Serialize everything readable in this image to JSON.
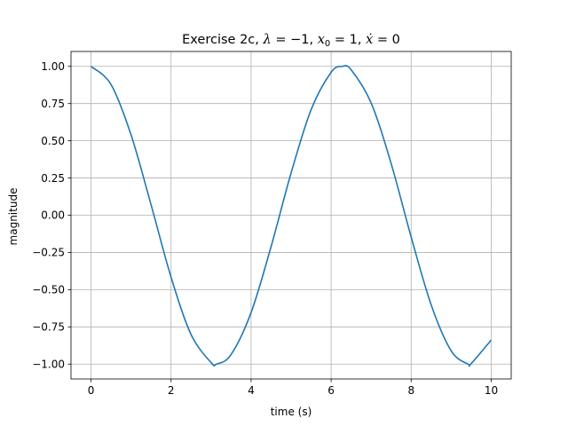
{
  "chart_data": {
    "type": "line",
    "title": "Exercise 2c, λ = −1, x₀ = 1, ẋ = 0",
    "xlabel": "time (s)",
    "ylabel": "magnitude",
    "xlim": [
      -0.5,
      10.5
    ],
    "ylim": [
      -1.1,
      1.1
    ],
    "grid": true,
    "x_ticks": [
      0,
      2,
      4,
      6,
      8,
      10
    ],
    "x_tick_labels": [
      "0",
      "2",
      "4",
      "6",
      "8",
      "10"
    ],
    "y_ticks": [
      1.0,
      0.75,
      0.5,
      0.25,
      0.0,
      -0.25,
      -0.5,
      -0.75,
      -1.0
    ],
    "y_tick_labels": [
      "1.00",
      "0.75",
      "0.50",
      "0.25",
      "0.00",
      "−0.25",
      "−0.50",
      "−0.75",
      "−1.00"
    ],
    "series": [
      {
        "color": "#1f77b4",
        "x": [
          0,
          0.5,
          1,
          1.5,
          2,
          2.5,
          3,
          3.14,
          3.5,
          4,
          4.5,
          5,
          5.5,
          6,
          6.28,
          6.5,
          7,
          7.5,
          8,
          8.5,
          9,
          9.42,
          9.5,
          10
        ],
        "y": [
          1.0,
          0.878,
          0.54,
          0.071,
          -0.416,
          -0.801,
          -0.99,
          -1.0,
          -0.936,
          -0.654,
          -0.211,
          0.284,
          0.709,
          0.96,
          1.0,
          0.977,
          0.754,
          0.347,
          -0.146,
          -0.602,
          -0.911,
          -1.0,
          -0.997,
          -0.839
        ]
      }
    ]
  }
}
